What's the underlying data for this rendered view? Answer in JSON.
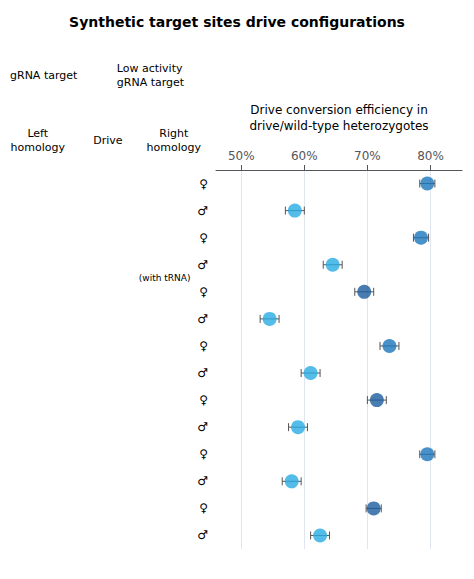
{
  "chart_data": {
    "type": "scatter",
    "orientation": "horizontal",
    "title": "Synthetic target sites drive configurations",
    "subtitle": "Drive conversion efficiency in\ndrive/wild-type heterozygotes",
    "annotations": [
      "gRNA target",
      "Low activity\ngRNA target",
      "Left\nhomology",
      "Drive",
      "Right\nhomology",
      "(with tRNA)"
    ],
    "categories": [
      "♀",
      "♂",
      "♀",
      "♂",
      "♀",
      "♂",
      "♀",
      "♂",
      "♀",
      "♂",
      "♀",
      "♂",
      "♀",
      "♂"
    ],
    "values": [
      79.5,
      58.5,
      78.5,
      64.5,
      69.5,
      54.5,
      73.5,
      61.0,
      71.5,
      59.0,
      79.5,
      58.0,
      71.0,
      62.5
    ],
    "xerr": [
      1.2,
      1.5,
      1.2,
      1.5,
      1.5,
      1.5,
      1.5,
      1.5,
      1.5,
      1.5,
      1.2,
      1.5,
      1.2,
      1.5
    ],
    "colors": [
      "#1A75BC",
      "#29ABE2",
      "#1A75BC",
      "#29ABE2",
      "#1B5C9E",
      "#29ABE2",
      "#1A75BC",
      "#29ABE2",
      "#1B5C9E",
      "#29ABE2",
      "#1A75BC",
      "#29ABE2",
      "#1B5C9E",
      "#29ABE2"
    ],
    "xlim": [
      46,
      85
    ],
    "xticks": [
      {
        "value": 50,
        "label": "50%"
      },
      {
        "value": 60,
        "label": "60%"
      },
      {
        "value": 70,
        "label": "70%"
      },
      {
        "value": 80,
        "label": "80%"
      }
    ],
    "grid": true,
    "marker": "circle"
  }
}
